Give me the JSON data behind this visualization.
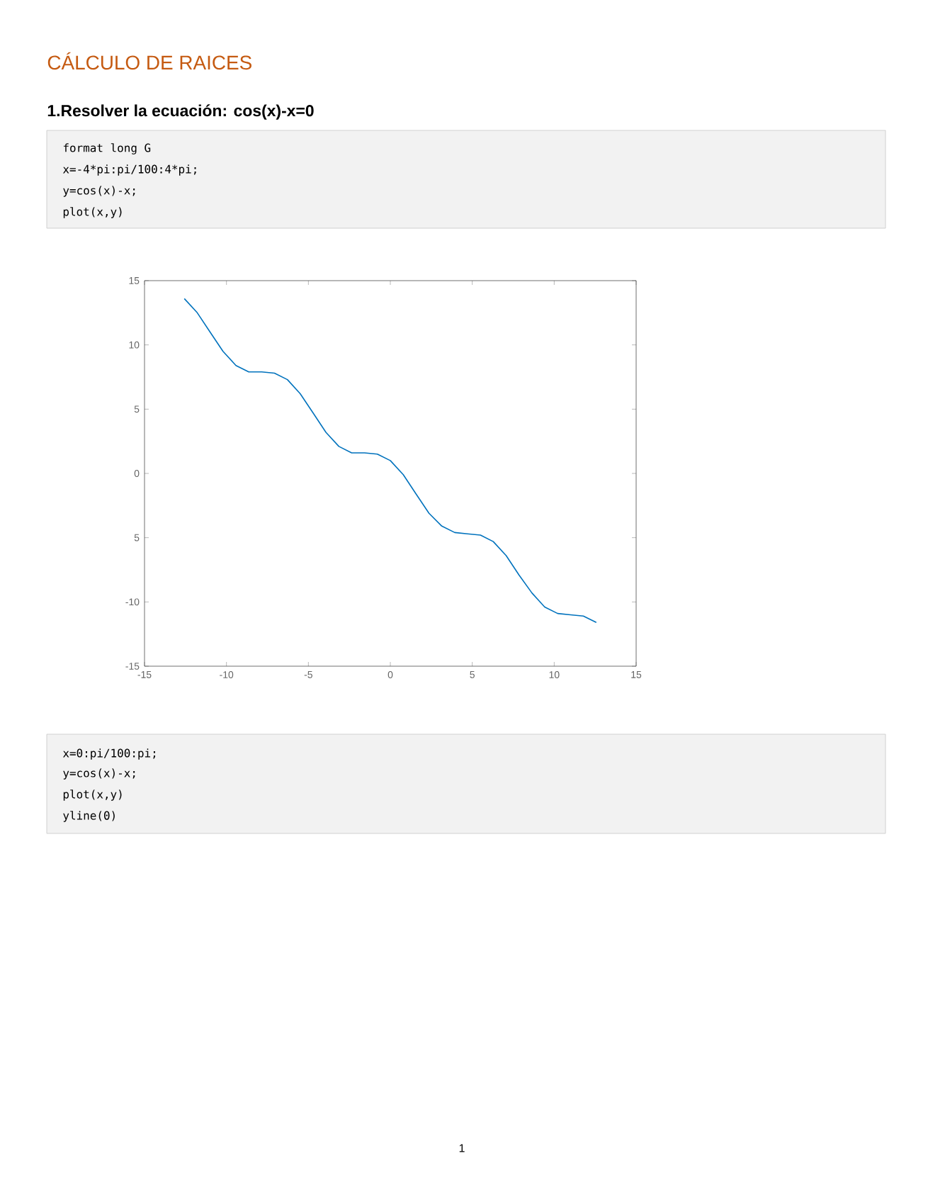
{
  "chart_data": {
    "type": "line",
    "title": "CÁLCULO DE RAICES",
    "subtitle": "1.Resolver la ecuación: cos(x)-x=0",
    "x": [
      -12.57,
      -11.78,
      -11.0,
      -10.21,
      -9.42,
      -8.64,
      -7.85,
      -7.07,
      -6.28,
      -5.5,
      -4.71,
      -3.93,
      -3.14,
      -2.36,
      -1.57,
      -0.79,
      0,
      0.79,
      1.57,
      2.36,
      3.14,
      3.93,
      4.71,
      5.5,
      6.28,
      7.07,
      7.85,
      8.64,
      9.42,
      10.21,
      11.0,
      11.78,
      12.57
    ],
    "series": [
      {
        "color": "#0072bd",
        "values": [
          13.6,
          12.5,
          11.0,
          9.5,
          8.4,
          7.9,
          7.9,
          7.8,
          7.3,
          6.2,
          4.7,
          3.2,
          2.1,
          1.6,
          1.6,
          1.5,
          1.0,
          -0.1,
          -1.6,
          -3.1,
          -4.1,
          -4.6,
          -4.7,
          -4.8,
          -5.3,
          -6.4,
          -7.9,
          -9.3,
          -10.4,
          -10.9,
          -11.0,
          -11.1,
          -11.6
        ]
      }
    ],
    "xlim": [
      -15,
      15
    ],
    "ylim": [
      -15,
      15
    ],
    "xticks": [
      -15,
      -10,
      -5,
      0,
      5,
      10,
      15
    ],
    "yticks": [
      -15,
      -10,
      {
        "value": -5,
        "label": "5"
      },
      0,
      5,
      10,
      15
    ],
    "grid": false,
    "marker": "none",
    "line_style": "solid",
    "annotations": [
      "format long G",
      "x=-4*pi:pi/100:4*pi;",
      "y=cos(x)-x;",
      "plot(x,y)",
      "x=0:pi/100:pi;",
      "y=cos(x)-x;",
      "plot(x,y)",
      "yline(0)",
      "1"
    ]
  }
}
